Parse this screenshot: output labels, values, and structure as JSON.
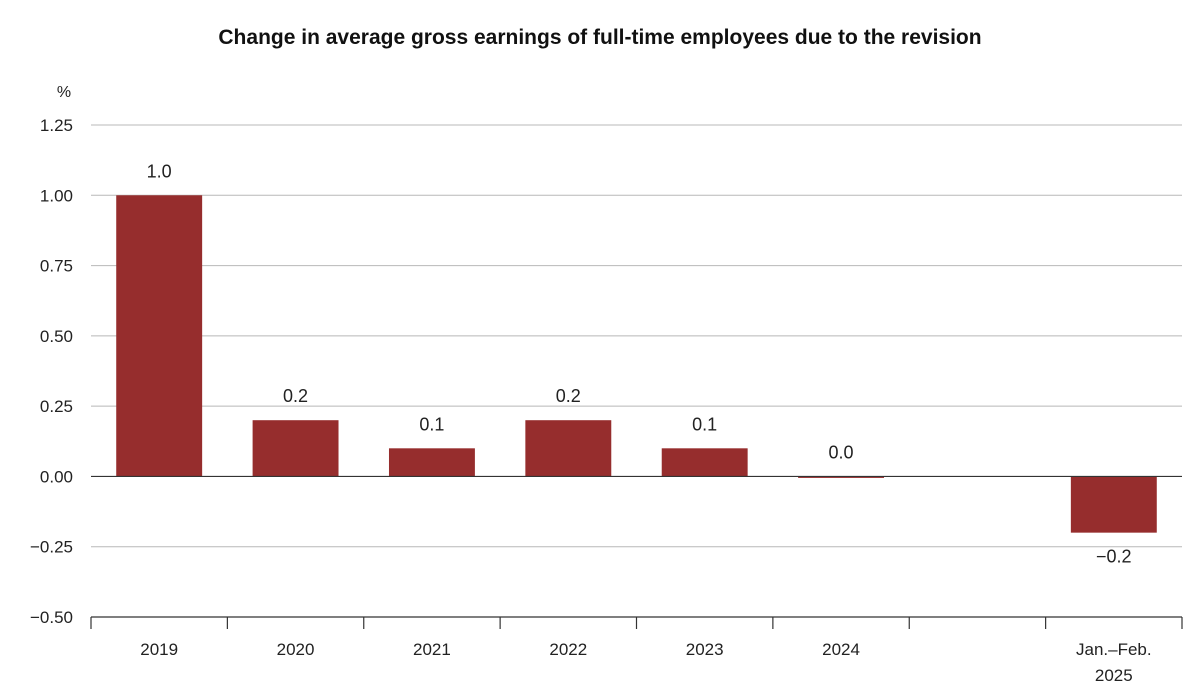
{
  "chart_data": {
    "type": "bar",
    "title": "Change in average gross earnings of full-time employees due to the revision",
    "yunit": "%",
    "xlabel": "",
    "ylabel": "",
    "ylim": [
      -0.5,
      1.25
    ],
    "yticks": [
      1.25,
      1.0,
      0.75,
      0.5,
      0.25,
      0.0,
      -0.25,
      -0.5
    ],
    "ytick_labels": [
      "1.25",
      "1.00",
      "0.75",
      "0.50",
      "0.25",
      "0.00",
      "−0.25",
      "−0.50"
    ],
    "categories": [
      [
        "2019"
      ],
      [
        "2020"
      ],
      [
        "2021"
      ],
      [
        "2022"
      ],
      [
        "2023"
      ],
      [
        "2024"
      ],
      [],
      [
        "Jan.–Feb.",
        "2025"
      ]
    ],
    "values": [
      1.0,
      0.2,
      0.1,
      0.2,
      0.1,
      0.0,
      null,
      -0.2
    ],
    "value_labels": [
      "1.0",
      "0.2",
      "0.1",
      "0.2",
      "0.1",
      "0.0",
      "",
      "−0.2"
    ],
    "grid": true,
    "bar_color": "#962d2d"
  }
}
